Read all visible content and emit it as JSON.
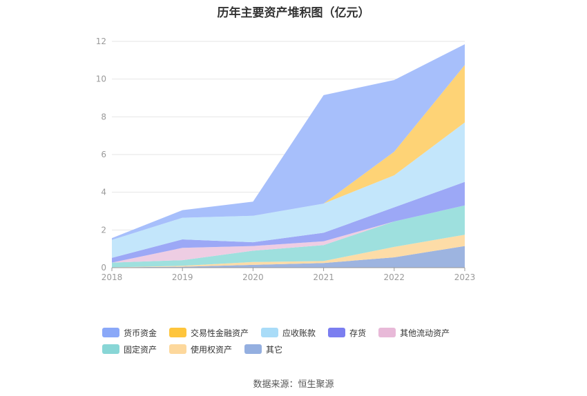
{
  "chart_data": {
    "type": "area",
    "stacked": true,
    "title": "历年主要资产堆积图（亿元）",
    "x": [
      "2018",
      "2019",
      "2020",
      "2021",
      "2022",
      "2023"
    ],
    "ylim": [
      0,
      12
    ],
    "yticks": [
      0,
      2,
      4,
      6,
      8,
      10,
      12
    ],
    "grid": true,
    "legend_position": "bottom",
    "series": [
      {
        "name": "其它",
        "color": "#9db4e0",
        "values": [
          0.02,
          0.05,
          0.15,
          0.25,
          0.55,
          1.15
        ]
      },
      {
        "name": "使用权资产",
        "color": "#fddca7",
        "values": [
          0.0,
          0.05,
          0.15,
          0.1,
          0.55,
          0.6
        ]
      },
      {
        "name": "固定资产",
        "color": "#9ee0de",
        "values": [
          0.25,
          0.3,
          0.6,
          0.85,
          1.35,
          1.55
        ]
      },
      {
        "name": "其他流动资产",
        "color": "#eecde3",
        "values": [
          0.0,
          0.65,
          0.25,
          0.2,
          0.0,
          0.0
        ]
      },
      {
        "name": "存货",
        "color": "#9ca8f6",
        "values": [
          0.25,
          0.45,
          0.2,
          0.45,
          0.75,
          1.25
        ]
      },
      {
        "name": "应收账款",
        "color": "#c3e6fb",
        "values": [
          0.95,
          1.15,
          1.4,
          1.55,
          1.7,
          3.15
        ]
      },
      {
        "name": "交易性金融资产",
        "color": "#fed376",
        "values": [
          0.0,
          0.0,
          0.0,
          0.0,
          1.25,
          3.05
        ]
      },
      {
        "name": "货币资金",
        "color": "#a7bffb",
        "values": [
          0.1,
          0.4,
          0.75,
          5.75,
          3.8,
          1.1
        ]
      }
    ],
    "legend": [
      {
        "name": "货币资金",
        "color": "#8aa8f8"
      },
      {
        "name": "交易性金融资产",
        "color": "#fec53c"
      },
      {
        "name": "应收账款",
        "color": "#a9dcf8"
      },
      {
        "name": "存货",
        "color": "#7b7ef0"
      },
      {
        "name": "其他流动资产",
        "color": "#e8b9d8"
      },
      {
        "name": "固定资产",
        "color": "#88d6d6"
      },
      {
        "name": "使用权资产",
        "color": "#fdd89c"
      },
      {
        "name": "其它",
        "color": "#94afe0"
      }
    ]
  },
  "source": "数据来源：恒生聚源"
}
